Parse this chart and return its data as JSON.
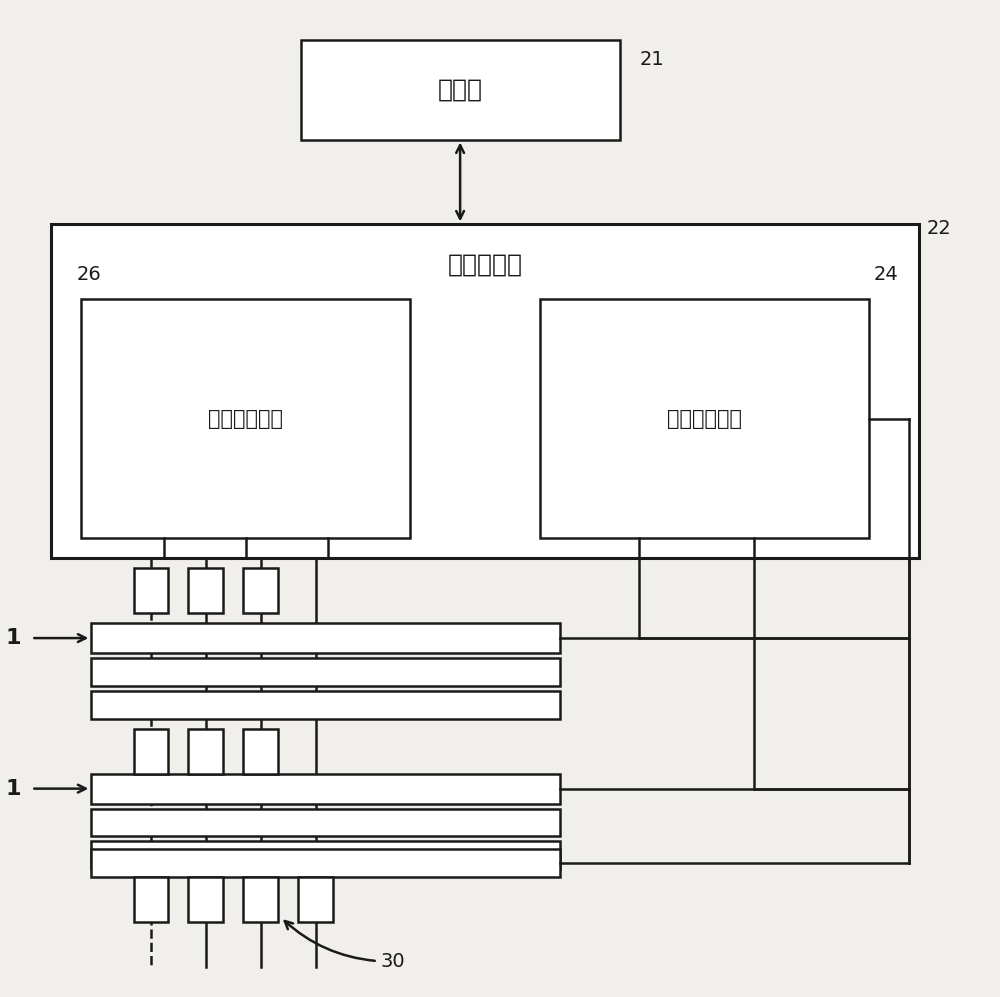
{
  "bg_color": "#f0efeb",
  "line_color": "#1a1a1a",
  "box_fill": "#ffffff",
  "label_processor": "处理器",
  "label_array_driver": "阵列驱动器",
  "label_col_driver": "列驱动器电路",
  "label_row_driver": "行驱动器电路",
  "n21": "21",
  "n22": "22",
  "n24": "24",
  "n26": "26",
  "n30": "30",
  "n1": "1",
  "lw": 1.8,
  "lw_thick": 2.2
}
